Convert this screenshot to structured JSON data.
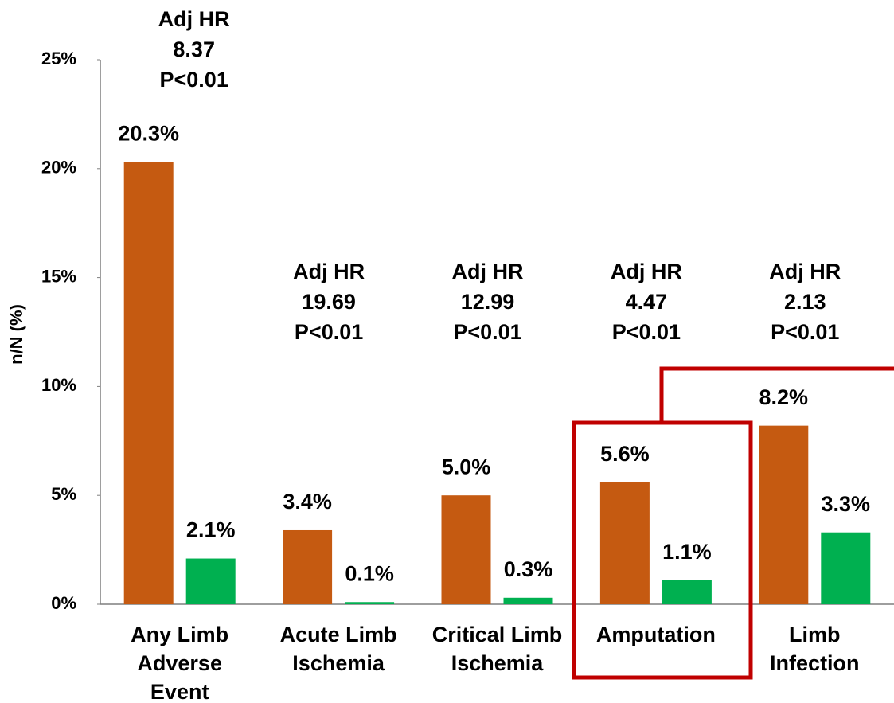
{
  "chart_data": {
    "type": "bar",
    "y_label": "n/N (%)",
    "categories": [
      "Any Limb\nAdverse\nEvent",
      "Acute Limb\nIschemia",
      "Critical Limb\nIschemia",
      "Amputation",
      "Limb\nInfection"
    ],
    "hr_labels": [
      "Adj HR\n8.37\nP<0.01",
      "Adj HR\n19.69\nP<0.01",
      "Adj HR\n12.99\nP<0.01",
      "Adj HR\n4.47\nP<0.01",
      "Adj HR\n2.13\nP<0.01"
    ],
    "series": [
      {
        "color": "#c55a11",
        "values": [
          20.3,
          3.4,
          5.0,
          5.6,
          8.2
        ],
        "value_labels": [
          "20.3%",
          "3.4%",
          "5.0%",
          "5.6%",
          "8.2%"
        ]
      },
      {
        "color": "#00b050",
        "values": [
          2.1,
          0.1,
          0.3,
          1.1,
          3.3
        ],
        "value_labels": [
          "2.1%",
          "0.1%",
          "0.3%",
          "1.1%",
          "3.3%"
        ]
      }
    ],
    "ylim": [
      0,
      25
    ],
    "yticks": [
      {
        "value": 0,
        "label": "0%"
      },
      {
        "value": 5,
        "label": "5%"
      },
      {
        "value": 10,
        "label": "10%"
      },
      {
        "value": 15,
        "label": "15%"
      },
      {
        "value": 20,
        "label": "20%"
      },
      {
        "value": 25,
        "label": "25%"
      }
    ],
    "grid": false
  }
}
